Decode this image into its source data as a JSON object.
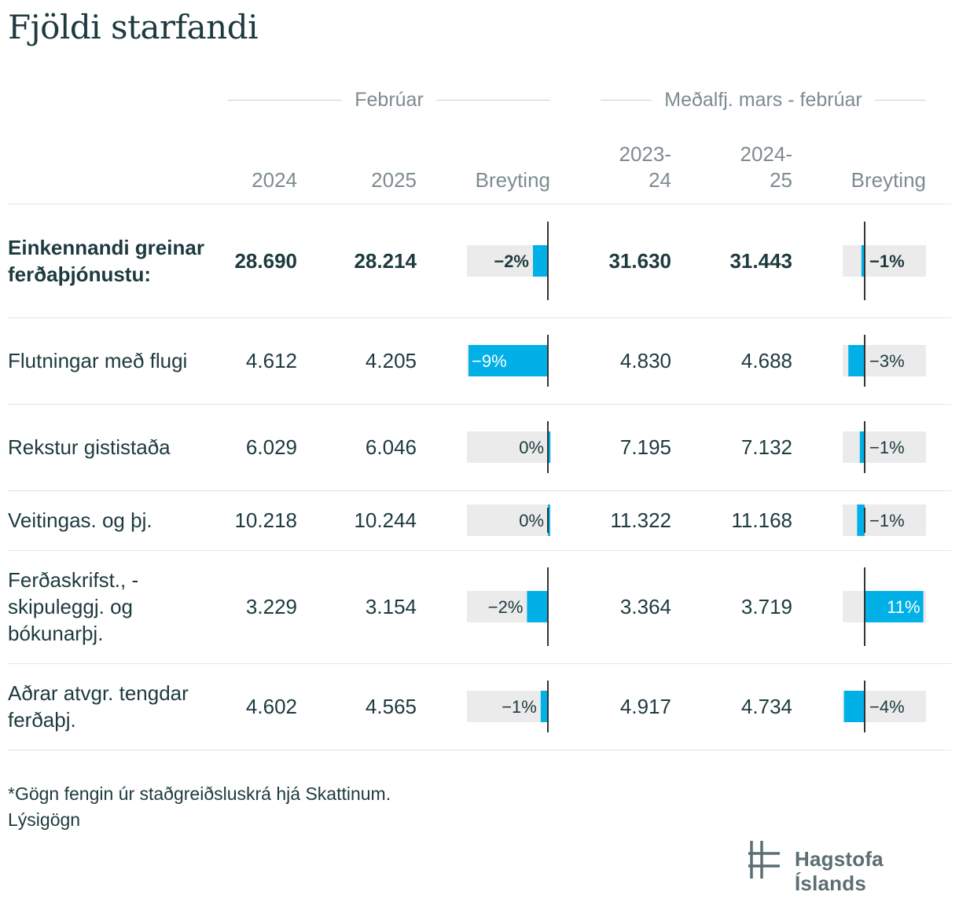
{
  "title": "Fjöldi starfandi",
  "groups": [
    {
      "label": "Febrúar"
    },
    {
      "label": "Meðalfj. mars - febrúar"
    }
  ],
  "columns": {
    "c2024": "2024",
    "c2025": "2025",
    "change1": "Breyting",
    "c2023_24_a": "2023-",
    "c2023_24_b": "24",
    "c2024_25_a": "2024-",
    "c2024_25_b": "25",
    "change2": "Breyting"
  },
  "chart_data": {
    "type": "table",
    "title": "Fjöldi starfandi",
    "column_groups": [
      "Febrúar",
      "Meðalfj. mars - febrúar"
    ],
    "columns": [
      "2024",
      "2025",
      "Breyting",
      "2023-24",
      "2024-25",
      "Breyting"
    ],
    "change_axis": {
      "feb_min_pct": -9,
      "feb_max_pct": 0,
      "avg_min_pct": -4,
      "avg_max_pct": 11
    },
    "rows": [
      {
        "label": "Einkennandi greinar ferðaþjónustu:",
        "bold": true,
        "feb_2024": "28.690",
        "feb_2025": "28.214",
        "feb_change": -1.66,
        "feb_change_label": "−2%",
        "avg_2023_24": "31.630",
        "avg_2024_25": "31.443",
        "avg_change": -0.59,
        "avg_change_label": "−1%"
      },
      {
        "label": "Flutningar með flugi",
        "bold": false,
        "feb_2024": "4.612",
        "feb_2025": "4.205",
        "feb_change": -8.82,
        "feb_change_label": "−9%",
        "avg_2023_24": "4.830",
        "avg_2024_25": "4.688",
        "avg_change": -2.94,
        "avg_change_label": "−3%"
      },
      {
        "label": "Rekstur gististaða",
        "bold": false,
        "feb_2024": "6.029",
        "feb_2025": "6.046",
        "feb_change": 0.28,
        "feb_change_label": "0%",
        "avg_2023_24": "7.195",
        "avg_2024_25": "7.132",
        "avg_change": -0.88,
        "avg_change_label": "−1%"
      },
      {
        "label": "Veitingas. og þj.",
        "bold": false,
        "feb_2024": "10.218",
        "feb_2025": "10.244",
        "feb_change": 0.25,
        "feb_change_label": "0%",
        "avg_2023_24": "11.322",
        "avg_2024_25": "11.168",
        "avg_change": -1.36,
        "avg_change_label": "−1%"
      },
      {
        "label": "Ferðaskrifst., -skipuleggj. og bókunarþj.",
        "bold": false,
        "feb_2024": "3.229",
        "feb_2025": "3.154",
        "feb_change": -2.32,
        "feb_change_label": "−2%",
        "avg_2023_24": "3.364",
        "avg_2024_25": "3.719",
        "avg_change": 10.55,
        "avg_change_label": "11%"
      },
      {
        "label": "Aðrar atvgr. tengdar ferðaþj.",
        "bold": false,
        "feb_2024": "4.602",
        "feb_2025": "4.565",
        "feb_change": -0.8,
        "feb_change_label": "−1%",
        "avg_2023_24": "4.917",
        "avg_2024_25": "4.734",
        "avg_change": -3.72,
        "avg_change_label": "−4%"
      }
    ]
  },
  "colors": {
    "bar": "#00b0e6",
    "bar_bg": "#ebebeb",
    "axis": "#333333",
    "text": "#1d3a3f",
    "muted": "#7d8c90",
    "rule": "#e3e6e7",
    "logo": "#5a6e73"
  },
  "footnote": {
    "line1": "*Gögn fengin úr staðgreiðsluskrá hjá Skattinum.",
    "line2": "Lýsigögn"
  },
  "logo": {
    "icon": "hagstofa-logo-icon",
    "text": "Hagstofa Íslands"
  }
}
